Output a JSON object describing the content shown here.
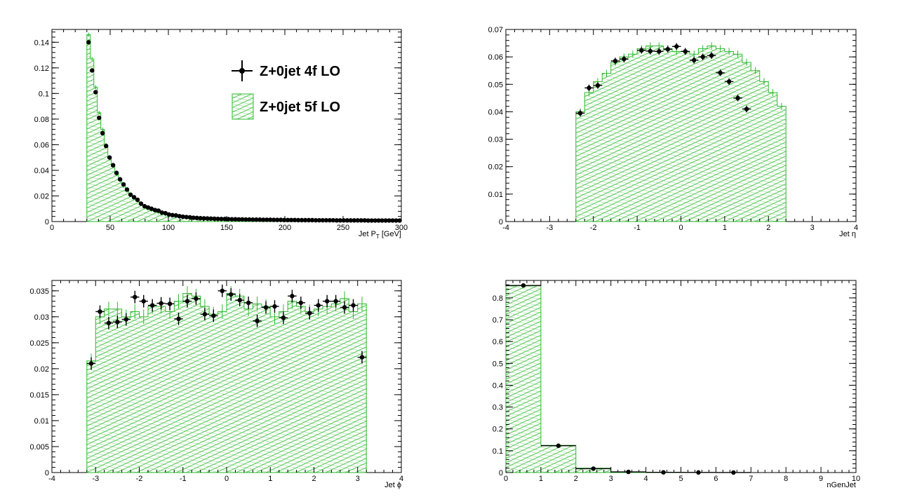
{
  "colors": {
    "data": "#000000",
    "mc": "#2db82d",
    "frame": "#000000",
    "background": "#ffffff"
  },
  "legend": {
    "data_label": "Z+0jet 4f LO",
    "mc_label": "Z+0jet 5f LO",
    "placement": "top-right of first panel"
  },
  "chart_data": [
    {
      "type": "histogram",
      "xlabel_main": "Jet P",
      "xlabel_sub": "T",
      "xlabel_unit": " [GeV]",
      "xlim": [
        0,
        300
      ],
      "ylim": [
        0,
        0.15
      ],
      "xticks": [
        "0",
        "50",
        "100",
        "150",
        "200",
        "250",
        "300"
      ],
      "yticks": [
        "0",
        "0.02",
        "0.04",
        "0.06",
        "0.08",
        "0.1",
        "0.12",
        "0.14"
      ],
      "bin_width": 3,
      "x_start": 30,
      "mc_values": [
        0.146,
        0.127,
        0.105,
        0.085,
        0.072,
        0.06,
        0.05,
        0.043,
        0.037,
        0.032,
        0.028,
        0.024,
        0.021,
        0.018,
        0.016,
        0.014,
        0.012,
        0.01,
        0.009,
        0.008,
        0.007,
        0.006,
        0.0055,
        0.005,
        0.0045,
        0.004,
        0.0037,
        0.0034,
        0.0031,
        0.0028,
        0.0026,
        0.0024,
        0.0022,
        0.002,
        0.0019,
        0.0018,
        0.0017,
        0.0016,
        0.0015,
        0.0014,
        0.0013,
        0.0012,
        0.0011,
        0.0011,
        0.001,
        0.001,
        0.0009,
        0.0009,
        0.0008,
        0.0008,
        0.0008,
        0.0007,
        0.0007,
        0.0007,
        0.0006,
        0.0006,
        0.0006,
        0.0005,
        0.0005,
        0.0005,
        0.0004,
        0.0004,
        0.0004,
        0.0004,
        0.0004,
        0.0004,
        0.0003,
        0.0003,
        0.0003,
        0.0003,
        0.0003,
        0.0003,
        0.0003,
        0.0003,
        0.0002,
        0.0002,
        0.0002,
        0.0002,
        0.0002,
        0.0002,
        0.0002,
        0.0002,
        0.0002,
        0.0002,
        0.0002,
        0.0002,
        0.0002,
        0.0002,
        0.0002,
        0.0002
      ],
      "data_values": [
        0.14,
        0.118,
        0.101,
        0.081,
        0.069,
        0.059,
        0.05,
        0.044,
        0.038,
        0.033,
        0.029,
        0.025,
        0.021,
        0.019,
        0.017,
        0.014,
        0.012,
        0.011,
        0.01,
        0.009,
        0.0085,
        0.007,
        0.0065,
        0.0055,
        0.005,
        0.0048,
        0.0042,
        0.0038,
        0.0035,
        0.0033,
        0.003,
        0.0028,
        0.0026,
        0.0025,
        0.0024,
        0.0023,
        0.0022,
        0.0021,
        0.002,
        0.002,
        0.0019,
        0.0018,
        0.0018,
        0.0017,
        0.0017,
        0.0016,
        0.0016,
        0.0015,
        0.0015,
        0.0015,
        0.0014,
        0.0014,
        0.0014,
        0.0013,
        0.0013,
        0.0013,
        0.0012,
        0.0012,
        0.0012,
        0.0012,
        0.0011,
        0.0011,
        0.0011,
        0.0011,
        0.0011,
        0.001,
        0.001,
        0.001,
        0.001,
        0.001,
        0.001,
        0.0009,
        0.0009,
        0.0009,
        0.0009,
        0.0009,
        0.0009,
        0.0009,
        0.0009,
        0.0009,
        0.0008,
        0.0008,
        0.0008,
        0.0008,
        0.0008,
        0.0008,
        0.0008,
        0.0008,
        0.0008,
        0.0008
      ],
      "data_yerr": 0.0012,
      "mc_yerr": 0.0015
    },
    {
      "type": "histogram",
      "xlabel_main": "Jet η",
      "xlim": [
        -4,
        4
      ],
      "ylim": [
        0,
        0.07
      ],
      "xticks": [
        "-4",
        "-3",
        "-2",
        "-1",
        "0",
        "1",
        "2",
        "3",
        "4"
      ],
      "yticks": [
        "0",
        "0.01",
        "0.02",
        "0.03",
        "0.04",
        "0.05",
        "0.06",
        "0.07"
      ],
      "bin_width": 0.2,
      "x_start": -2.4,
      "mc_values": [
        0.04,
        0.047,
        0.051,
        0.054,
        0.058,
        0.06,
        0.061,
        0.063,
        0.064,
        0.064,
        0.063,
        0.062,
        0.062,
        0.061,
        0.063,
        0.064,
        0.063,
        0.062,
        0.061,
        0.058,
        0.055,
        0.051,
        0.047,
        0.042
      ],
      "data_values": [
        0.0395,
        0.0487,
        0.0496,
        0.0585,
        0.0592,
        0.0624,
        0.0621,
        0.062,
        0.0628,
        0.0638,
        0.062,
        0.0588,
        0.06,
        0.0605,
        0.0542,
        0.051,
        0.045,
        0.041
      ],
      "data_x": [
        -2.3,
        -2.1,
        -1.9,
        -1.5,
        -1.3,
        -0.9,
        -0.7,
        -0.5,
        -0.3,
        -0.1,
        0.1,
        0.3,
        0.5,
        0.7,
        0.9,
        1.1,
        1.3,
        1.5
      ],
      "data_fix": true,
      "data_yerr": 0.0012,
      "mc_yerr": 0.0013
    },
    {
      "type": "histogram",
      "xlabel_main": "Jet ϕ",
      "xlim": [
        -4,
        4
      ],
      "ylim": [
        0,
        0.037
      ],
      "xticks": [
        "-4",
        "-3",
        "-2",
        "-1",
        "0",
        "1",
        "2",
        "3",
        "4"
      ],
      "yticks": [
        "0",
        "0.005",
        "0.01",
        "0.015",
        "0.02",
        "0.025",
        "0.03",
        "0.035"
      ],
      "bin_width": 0.2,
      "x_start": -3.2,
      "mc_values": [
        0.0215,
        0.03,
        0.0315,
        0.0315,
        0.03,
        0.031,
        0.03,
        0.032,
        0.032,
        0.031,
        0.033,
        0.0345,
        0.034,
        0.032,
        0.0305,
        0.031,
        0.0345,
        0.034,
        0.0315,
        0.0325,
        0.032,
        0.03,
        0.031,
        0.033,
        0.032,
        0.031,
        0.0315,
        0.032,
        0.0325,
        0.0335,
        0.031,
        0.0325
      ],
      "data_values": [
        0.021,
        0.031,
        0.0288,
        0.029,
        0.0295,
        0.0338,
        0.033,
        0.0322,
        0.0326,
        0.0325,
        0.0296,
        0.033,
        0.0335,
        0.0305,
        0.0302,
        0.035,
        0.0343,
        0.0332,
        0.0327,
        0.0292,
        0.0318,
        0.032,
        0.0298,
        0.034,
        0.0327,
        0.0307,
        0.0322,
        0.033,
        0.033,
        0.0318,
        0.0322,
        0.0222
      ],
      "data_yerr": 0.0012,
      "mc_yerr": 0.0014
    },
    {
      "type": "histogram",
      "xlabel_main": "nGenJet",
      "xlim": [
        0,
        10
      ],
      "ylim": [
        0,
        0.88
      ],
      "xticks": [
        "0",
        "1",
        "2",
        "3",
        "4",
        "5",
        "6",
        "7",
        "8",
        "9",
        "10"
      ],
      "yticks": [
        "0",
        "0.1",
        "0.2",
        "0.3",
        "0.4",
        "0.5",
        "0.6",
        "0.7",
        "0.8"
      ],
      "bin_width": 1,
      "x_start": 0,
      "mc_values": [
        0.855,
        0.125,
        0.02,
        0.003,
        0.001,
        0.0005,
        0.0002
      ],
      "data_values": [
        0.857,
        0.123,
        0.018,
        0.003,
        0.001,
        0.0005,
        0.0002
      ],
      "data_yerr": 0.004,
      "mc_yerr": 0.004
    }
  ]
}
